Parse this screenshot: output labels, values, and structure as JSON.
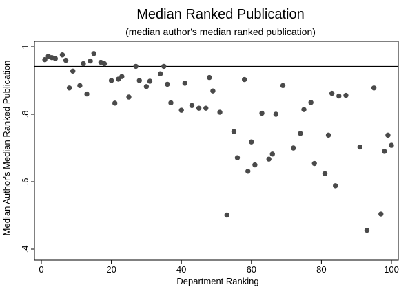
{
  "chart_data": {
    "type": "scatter",
    "title": "Median Ranked Publication",
    "subtitle": "(median author's median ranked publication)",
    "xlabel": "Department Ranking",
    "ylabel": "Median Author's Median Ranked Publication",
    "xlim": [
      0,
      100
    ],
    "ylim": [
      0.4,
      1.0
    ],
    "x_ticks": [
      0,
      20,
      40,
      60,
      80,
      100
    ],
    "y_ticks": [
      0.4,
      0.6,
      0.8,
      1.0
    ],
    "y_tick_labels": [
      ".4",
      ".6",
      ".8",
      "1"
    ],
    "reference_line_y": 0.942,
    "grid": false,
    "marker_color": "#4a4a4a",
    "points": [
      {
        "x": 1,
        "y": 0.962
      },
      {
        "x": 2,
        "y": 0.972
      },
      {
        "x": 3,
        "y": 0.968
      },
      {
        "x": 4,
        "y": 0.965
      },
      {
        "x": 6,
        "y": 0.976
      },
      {
        "x": 7,
        "y": 0.96
      },
      {
        "x": 8,
        "y": 0.878
      },
      {
        "x": 9,
        "y": 0.928
      },
      {
        "x": 11,
        "y": 0.885
      },
      {
        "x": 12,
        "y": 0.95
      },
      {
        "x": 13,
        "y": 0.86
      },
      {
        "x": 14,
        "y": 0.958
      },
      {
        "x": 15,
        "y": 0.98
      },
      {
        "x": 17,
        "y": 0.954
      },
      {
        "x": 18,
        "y": 0.95
      },
      {
        "x": 20,
        "y": 0.9
      },
      {
        "x": 21,
        "y": 0.833
      },
      {
        "x": 22,
        "y": 0.904
      },
      {
        "x": 23,
        "y": 0.912
      },
      {
        "x": 25,
        "y": 0.851
      },
      {
        "x": 27,
        "y": 0.942
      },
      {
        "x": 28,
        "y": 0.9
      },
      {
        "x": 30,
        "y": 0.882
      },
      {
        "x": 31,
        "y": 0.898
      },
      {
        "x": 34,
        "y": 0.92
      },
      {
        "x": 35,
        "y": 0.942
      },
      {
        "x": 36,
        "y": 0.889
      },
      {
        "x": 37,
        "y": 0.834
      },
      {
        "x": 40,
        "y": 0.812
      },
      {
        "x": 41,
        "y": 0.892
      },
      {
        "x": 43,
        "y": 0.826
      },
      {
        "x": 45,
        "y": 0.818
      },
      {
        "x": 47,
        "y": 0.818
      },
      {
        "x": 48,
        "y": 0.909
      },
      {
        "x": 49,
        "y": 0.869
      },
      {
        "x": 51,
        "y": 0.806
      },
      {
        "x": 53,
        "y": 0.501
      },
      {
        "x": 55,
        "y": 0.749
      },
      {
        "x": 56,
        "y": 0.671
      },
      {
        "x": 58,
        "y": 0.903
      },
      {
        "x": 59,
        "y": 0.631
      },
      {
        "x": 60,
        "y": 0.718
      },
      {
        "x": 61,
        "y": 0.65
      },
      {
        "x": 63,
        "y": 0.803
      },
      {
        "x": 65,
        "y": 0.667
      },
      {
        "x": 66,
        "y": 0.682
      },
      {
        "x": 67,
        "y": 0.8
      },
      {
        "x": 69,
        "y": 0.885
      },
      {
        "x": 72,
        "y": 0.7
      },
      {
        "x": 74,
        "y": 0.743
      },
      {
        "x": 75,
        "y": 0.814
      },
      {
        "x": 77,
        "y": 0.835
      },
      {
        "x": 78,
        "y": 0.654
      },
      {
        "x": 81,
        "y": 0.624
      },
      {
        "x": 82,
        "y": 0.738
      },
      {
        "x": 83,
        "y": 0.862
      },
      {
        "x": 84,
        "y": 0.588
      },
      {
        "x": 85,
        "y": 0.854
      },
      {
        "x": 87,
        "y": 0.856
      },
      {
        "x": 91,
        "y": 0.703
      },
      {
        "x": 93,
        "y": 0.456
      },
      {
        "x": 95,
        "y": 0.878
      },
      {
        "x": 97,
        "y": 0.504
      },
      {
        "x": 98,
        "y": 0.69
      },
      {
        "x": 99,
        "y": 0.738
      },
      {
        "x": 100,
        "y": 0.708
      }
    ]
  }
}
